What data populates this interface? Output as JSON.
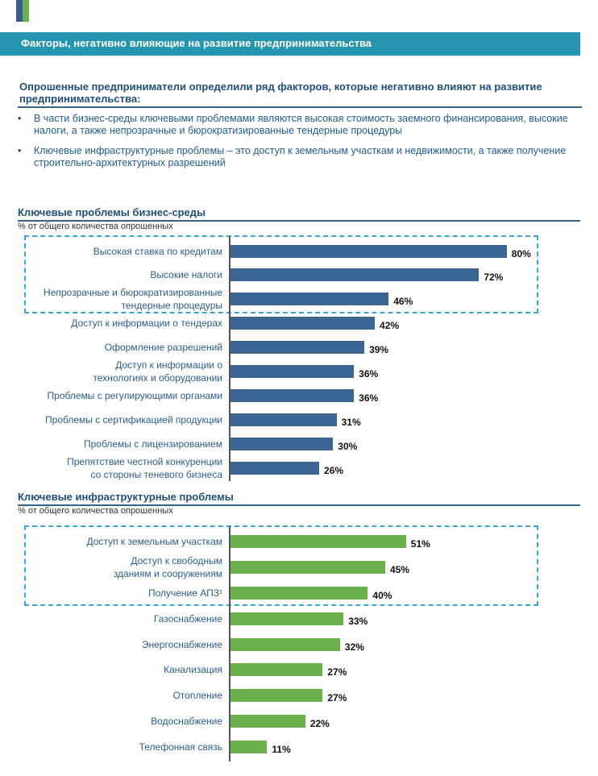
{
  "header": {
    "banner_title": "Факторы, негативно влияющие на развитие предпринимательства"
  },
  "intro": {
    "heading": "Опрошенные предприниматели определили ряд факторов, которые негативно влияют на развитие предпринимательства:",
    "bullets": [
      "В части бизнес-среды ключевыми проблемами являются высокая стоимость заемного финансирования, высокие налоги, а также непрозрачные и бюрократизированные тендерные процедуры",
      "Ключевые инфраструктурные проблемы – это доступ к земельным участкам и недвижимости, а также получение строительно-архитектурных разрешений"
    ],
    "bullet_glyph": "•"
  },
  "colors": {
    "banner": "#2596b0",
    "business_bars": "#3b6592",
    "infrastructure_bars": "#6ab04c",
    "highlight_box": "#39a6d0",
    "label_text": "#2a5d8c"
  },
  "chart_data": [
    {
      "type": "bar",
      "orientation": "horizontal",
      "title": "Ключевые проблемы бизнес-среды",
      "subtitle": "% от общего количества опрошенных",
      "unit": "%",
      "categories": [
        "Высокая ставка по кредитам",
        "Высокие налоги",
        "Непрозрачные и бюрократизированные\nтендерные процедуры",
        "Доступ к информации о тендерах",
        "Оформление разрешений",
        "Доступ к информации о\nтехнологиях и оборудовании",
        "Проблемы с регулирующими органами",
        "Проблемы с сертификацией продукции",
        "Проблемы с лицензированием",
        "Препятствие честной конкуренции\nсо стороны теневого бизнеса"
      ],
      "values": [
        80,
        72,
        46,
        42,
        39,
        36,
        36,
        31,
        30,
        26
      ],
      "labels": [
        "80%",
        "72%",
        "46%",
        "42%",
        "39%",
        "36%",
        "36%",
        "31%",
        "30%",
        "26%"
      ],
      "highlighted_top": 3,
      "xlim": [
        0,
        100
      ]
    },
    {
      "type": "bar",
      "orientation": "horizontal",
      "title": "Ключевые инфраструктурные проблемы",
      "subtitle": "% от общего количества опрошенных",
      "unit": "%",
      "categories": [
        "Доступ к земельным участкам",
        "Доступ к свободным\nзданиям и сооружениям",
        "Получение АПЗ¹",
        "Газоснабжение",
        "Энергоснабжение",
        "Канализация",
        "Отопление",
        "Водоснабжение",
        "Телефонная связь"
      ],
      "values": [
        51,
        45,
        40,
        33,
        32,
        27,
        27,
        22,
        11
      ],
      "labels": [
        "51%",
        "45%",
        "40%",
        "33%",
        "32%",
        "27%",
        "27%",
        "22%",
        "11%"
      ],
      "highlighted_top": 3,
      "xlim": [
        0,
        100
      ]
    }
  ]
}
